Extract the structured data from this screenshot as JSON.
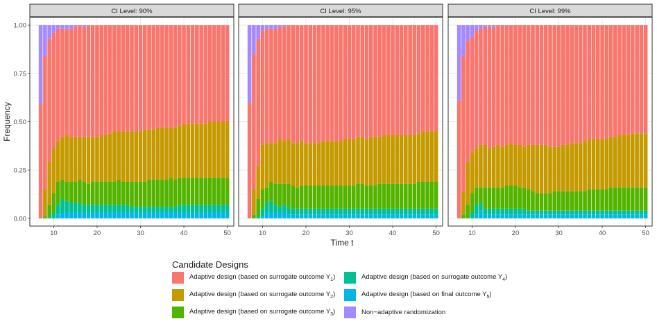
{
  "chart_data": {
    "type": "stacked-bar",
    "ylabel": "Frequency",
    "xlabel": "Time t",
    "x": [
      7,
      8,
      9,
      10,
      11,
      12,
      13,
      14,
      15,
      16,
      17,
      18,
      19,
      20,
      21,
      22,
      23,
      24,
      25,
      26,
      27,
      28,
      29,
      30,
      31,
      32,
      33,
      34,
      35,
      36,
      37,
      38,
      39,
      40,
      41,
      42,
      43,
      44,
      45,
      46,
      47,
      48,
      49,
      50
    ],
    "xticks": [
      10,
      20,
      30,
      40,
      50
    ],
    "yticks": [
      "0.00",
      "0.25",
      "0.50",
      "0.75",
      "1.00"
    ],
    "xlim": [
      4.5,
      51.5
    ],
    "ylim": [
      -0.04,
      1.04
    ],
    "stack_order": [
      "Y5",
      "Y4",
      "Y3",
      "Y2",
      "Y1",
      "NA"
    ],
    "legend": {
      "title": "Candidate Designs",
      "items": [
        {
          "key": "Y1",
          "text": "Adaptive design (based on surrogate outcome Y",
          "sub": "1",
          "suffix": ")",
          "color": "#F8766D"
        },
        {
          "key": "Y2",
          "text": "Adaptive design (based on surrogate outcome Y",
          "sub": "2",
          "suffix": ")",
          "color": "#C49A00"
        },
        {
          "key": "Y3",
          "text": "Adaptive design (based on surrogate outcome Y",
          "sub": "3",
          "suffix": ")",
          "color": "#53B400"
        },
        {
          "key": "Y4",
          "text": "Adaptive design (based on surrogate outcome Y",
          "sub": "4",
          "suffix": ")",
          "color": "#00C094"
        },
        {
          "key": "Y5",
          "text": "Adaptive design (based on final outcome Y",
          "sub": "5",
          "suffix": ")",
          "color": "#00B6EB"
        },
        {
          "key": "NA",
          "text": "Non−adaptive randomization",
          "sub": "",
          "suffix": "",
          "color": "#A58AFF"
        }
      ]
    },
    "panels": [
      {
        "title": "CI Level: 90%",
        "series": {
          "Y5": [
            0,
            0,
            0,
            0,
            0.02,
            0.03,
            0.03,
            0.03,
            0.03,
            0.03,
            0.03,
            0.03,
            0.03,
            0.03,
            0.03,
            0.03,
            0.03,
            0.03,
            0.03,
            0.03,
            0.03,
            0.03,
            0.03,
            0.03,
            0.03,
            0.03,
            0.03,
            0.03,
            0.03,
            0.03,
            0.03,
            0.03,
            0.03,
            0.03,
            0.03,
            0.03,
            0.03,
            0.03,
            0.03,
            0.03,
            0.03,
            0.03,
            0.03,
            0.03
          ],
          "Y4": [
            0,
            0,
            0.01,
            0.03,
            0.05,
            0.07,
            0.06,
            0.05,
            0.05,
            0.05,
            0.04,
            0.04,
            0.04,
            0.04,
            0.04,
            0.04,
            0.04,
            0.04,
            0.04,
            0.04,
            0.04,
            0.03,
            0.03,
            0.03,
            0.03,
            0.03,
            0.03,
            0.03,
            0.03,
            0.03,
            0.03,
            0.03,
            0.04,
            0.04,
            0.04,
            0.04,
            0.04,
            0.04,
            0.04,
            0.04,
            0.04,
            0.04,
            0.04,
            0.04
          ],
          "Y3": [
            0,
            0.01,
            0.06,
            0.1,
            0.12,
            0.1,
            0.1,
            0.11,
            0.11,
            0.12,
            0.12,
            0.11,
            0.12,
            0.12,
            0.12,
            0.12,
            0.12,
            0.12,
            0.13,
            0.12,
            0.12,
            0.13,
            0.13,
            0.13,
            0.13,
            0.14,
            0.14,
            0.14,
            0.14,
            0.14,
            0.15,
            0.14,
            0.14,
            0.14,
            0.14,
            0.14,
            0.14,
            0.14,
            0.14,
            0.14,
            0.14,
            0.14,
            0.14,
            0.14
          ],
          "Y2": [
            0,
            0.14,
            0.22,
            0.23,
            0.21,
            0.22,
            0.24,
            0.23,
            0.23,
            0.22,
            0.23,
            0.24,
            0.23,
            0.23,
            0.24,
            0.24,
            0.25,
            0.26,
            0.25,
            0.26,
            0.26,
            0.26,
            0.26,
            0.26,
            0.27,
            0.26,
            0.26,
            0.27,
            0.27,
            0.27,
            0.26,
            0.27,
            0.27,
            0.28,
            0.28,
            0.28,
            0.28,
            0.28,
            0.28,
            0.29,
            0.29,
            0.29,
            0.29,
            0.29
          ],
          "Y1": [
            0.59,
            0.69,
            0.64,
            0.6,
            0.58,
            0.56,
            0.55,
            0.56,
            0.57,
            0.58,
            0.57,
            0.58,
            0.58,
            0.58,
            0.57,
            0.57,
            0.56,
            0.55,
            0.55,
            0.55,
            0.55,
            0.55,
            0.55,
            0.55,
            0.54,
            0.54,
            0.54,
            0.53,
            0.53,
            0.53,
            0.53,
            0.53,
            0.52,
            0.51,
            0.51,
            0.51,
            0.51,
            0.51,
            0.51,
            0.5,
            0.5,
            0.5,
            0.5,
            0.5
          ],
          "NA": [
            0.41,
            0.16,
            0.07,
            0.04,
            0.02,
            0.02,
            0.02,
            0.02,
            0.01,
            0,
            0.01,
            0,
            0,
            0,
            0,
            0,
            0,
            0,
            0,
            0,
            0,
            0,
            0,
            0,
            0,
            0,
            0,
            0,
            0,
            0,
            0,
            0,
            0,
            0,
            0,
            0,
            0,
            0,
            0,
            0,
            0,
            0,
            0,
            0
          ]
        }
      },
      {
        "title": "CI Level: 95%",
        "series": {
          "Y5": [
            0,
            0,
            0,
            0.01,
            0.03,
            0.03,
            0.03,
            0.03,
            0.03,
            0.02,
            0.02,
            0.02,
            0.02,
            0.02,
            0.02,
            0.02,
            0.02,
            0.02,
            0.02,
            0.02,
            0.02,
            0.02,
            0.02,
            0.02,
            0.02,
            0.02,
            0.02,
            0.02,
            0.02,
            0.02,
            0.02,
            0.02,
            0.02,
            0.02,
            0.02,
            0.02,
            0.02,
            0.02,
            0.02,
            0.02,
            0.02,
            0.02,
            0.02,
            0.02
          ],
          "Y4": [
            0,
            0,
            0.01,
            0.04,
            0.05,
            0.06,
            0.04,
            0.03,
            0.04,
            0.04,
            0.03,
            0.03,
            0.03,
            0.03,
            0.03,
            0.03,
            0.03,
            0.03,
            0.03,
            0.03,
            0.03,
            0.03,
            0.03,
            0.03,
            0.03,
            0.03,
            0.03,
            0.03,
            0.03,
            0.03,
            0.03,
            0.03,
            0.03,
            0.03,
            0.03,
            0.03,
            0.03,
            0.03,
            0.03,
            0.03,
            0.03,
            0.03,
            0.03,
            0.03
          ],
          "Y3": [
            0,
            0.02,
            0.09,
            0.1,
            0.08,
            0.1,
            0.11,
            0.12,
            0.11,
            0.12,
            0.12,
            0.11,
            0.12,
            0.12,
            0.12,
            0.12,
            0.12,
            0.12,
            0.12,
            0.12,
            0.12,
            0.12,
            0.12,
            0.12,
            0.12,
            0.13,
            0.13,
            0.12,
            0.12,
            0.12,
            0.13,
            0.13,
            0.13,
            0.13,
            0.13,
            0.13,
            0.13,
            0.13,
            0.13,
            0.14,
            0.14,
            0.14,
            0.14,
            0.14
          ],
          "Y2": [
            0,
            0.13,
            0.17,
            0.23,
            0.23,
            0.2,
            0.21,
            0.23,
            0.22,
            0.23,
            0.22,
            0.23,
            0.23,
            0.22,
            0.22,
            0.22,
            0.22,
            0.23,
            0.23,
            0.23,
            0.23,
            0.23,
            0.24,
            0.24,
            0.24,
            0.24,
            0.24,
            0.24,
            0.25,
            0.25,
            0.24,
            0.25,
            0.25,
            0.25,
            0.25,
            0.25,
            0.25,
            0.25,
            0.25,
            0.25,
            0.26,
            0.26,
            0.26,
            0.26
          ],
          "Y1": [
            0.6,
            0.7,
            0.66,
            0.59,
            0.59,
            0.59,
            0.59,
            0.58,
            0.59,
            0.59,
            0.61,
            0.61,
            0.6,
            0.61,
            0.61,
            0.61,
            0.61,
            0.6,
            0.6,
            0.6,
            0.6,
            0.6,
            0.59,
            0.59,
            0.59,
            0.58,
            0.58,
            0.59,
            0.58,
            0.58,
            0.58,
            0.57,
            0.57,
            0.57,
            0.57,
            0.57,
            0.57,
            0.57,
            0.57,
            0.56,
            0.55,
            0.55,
            0.55,
            0.55
          ],
          "NA": [
            0.4,
            0.15,
            0.07,
            0.03,
            0.02,
            0.02,
            0.02,
            0.01,
            0.01,
            0,
            0,
            0,
            0,
            0,
            0,
            0,
            0,
            0,
            0,
            0,
            0,
            0,
            0,
            0,
            0,
            0,
            0,
            0,
            0,
            0,
            0,
            0,
            0,
            0,
            0,
            0,
            0,
            0,
            0,
            0,
            0,
            0,
            0,
            0
          ]
        }
      },
      {
        "title": "CI Level: 99%",
        "series": {
          "Y5": [
            0,
            0,
            0,
            0,
            0.02,
            0.04,
            0.02,
            0.02,
            0.02,
            0.02,
            0.02,
            0.02,
            0.02,
            0.02,
            0.02,
            0.02,
            0.02,
            0.02,
            0.02,
            0.02,
            0.02,
            0.02,
            0.02,
            0.02,
            0.02,
            0.02,
            0.02,
            0.02,
            0.02,
            0.02,
            0.02,
            0.02,
            0.02,
            0.02,
            0.02,
            0.02,
            0.02,
            0.02,
            0.02,
            0.02,
            0.02,
            0.02,
            0.02,
            0.02
          ],
          "Y4": [
            0,
            0,
            0,
            0.03,
            0.05,
            0.04,
            0.03,
            0.03,
            0.03,
            0.03,
            0.03,
            0.03,
            0.03,
            0.03,
            0.03,
            0.03,
            0.02,
            0.02,
            0.02,
            0.02,
            0.02,
            0.02,
            0.02,
            0.02,
            0.02,
            0.02,
            0.02,
            0.02,
            0.02,
            0.02,
            0.02,
            0.02,
            0.02,
            0.02,
            0.02,
            0.02,
            0.02,
            0.02,
            0.02,
            0.02,
            0.02,
            0.02,
            0.02,
            0.02
          ],
          "Y3": [
            0,
            0.02,
            0.07,
            0.1,
            0.09,
            0.08,
            0.11,
            0.11,
            0.11,
            0.11,
            0.11,
            0.12,
            0.12,
            0.12,
            0.11,
            0.11,
            0.11,
            0.1,
            0.09,
            0.09,
            0.09,
            0.09,
            0.1,
            0.1,
            0.1,
            0.1,
            0.1,
            0.1,
            0.1,
            0.1,
            0.11,
            0.11,
            0.11,
            0.11,
            0.11,
            0.12,
            0.12,
            0.12,
            0.12,
            0.12,
            0.12,
            0.12,
            0.12,
            0.12
          ],
          "Y2": [
            0,
            0.12,
            0.22,
            0.21,
            0.2,
            0.22,
            0.22,
            0.2,
            0.21,
            0.22,
            0.21,
            0.21,
            0.22,
            0.21,
            0.22,
            0.21,
            0.23,
            0.24,
            0.25,
            0.25,
            0.25,
            0.24,
            0.23,
            0.23,
            0.24,
            0.24,
            0.25,
            0.25,
            0.25,
            0.26,
            0.26,
            0.26,
            0.26,
            0.26,
            0.26,
            0.26,
            0.26,
            0.27,
            0.27,
            0.27,
            0.28,
            0.28,
            0.28,
            0.28
          ],
          "Y1": [
            0.61,
            0.7,
            0.63,
            0.6,
            0.61,
            0.6,
            0.61,
            0.63,
            0.62,
            0.62,
            0.63,
            0.62,
            0.61,
            0.62,
            0.62,
            0.63,
            0.62,
            0.62,
            0.62,
            0.62,
            0.62,
            0.63,
            0.63,
            0.63,
            0.62,
            0.62,
            0.61,
            0.61,
            0.61,
            0.6,
            0.59,
            0.59,
            0.59,
            0.59,
            0.59,
            0.58,
            0.58,
            0.57,
            0.57,
            0.57,
            0.56,
            0.56,
            0.56,
            0.56
          ],
          "NA": [
            0.39,
            0.16,
            0.08,
            0.06,
            0.03,
            0.02,
            0.01,
            0.01,
            0.01,
            0,
            0,
            0,
            0,
            0,
            0,
            0,
            0,
            0,
            0,
            0,
            0,
            0,
            0,
            0,
            0,
            0,
            0,
            0,
            0,
            0,
            0,
            0,
            0,
            0,
            0,
            0,
            0,
            0,
            0,
            0,
            0,
            0,
            0,
            0
          ]
        }
      }
    ]
  }
}
